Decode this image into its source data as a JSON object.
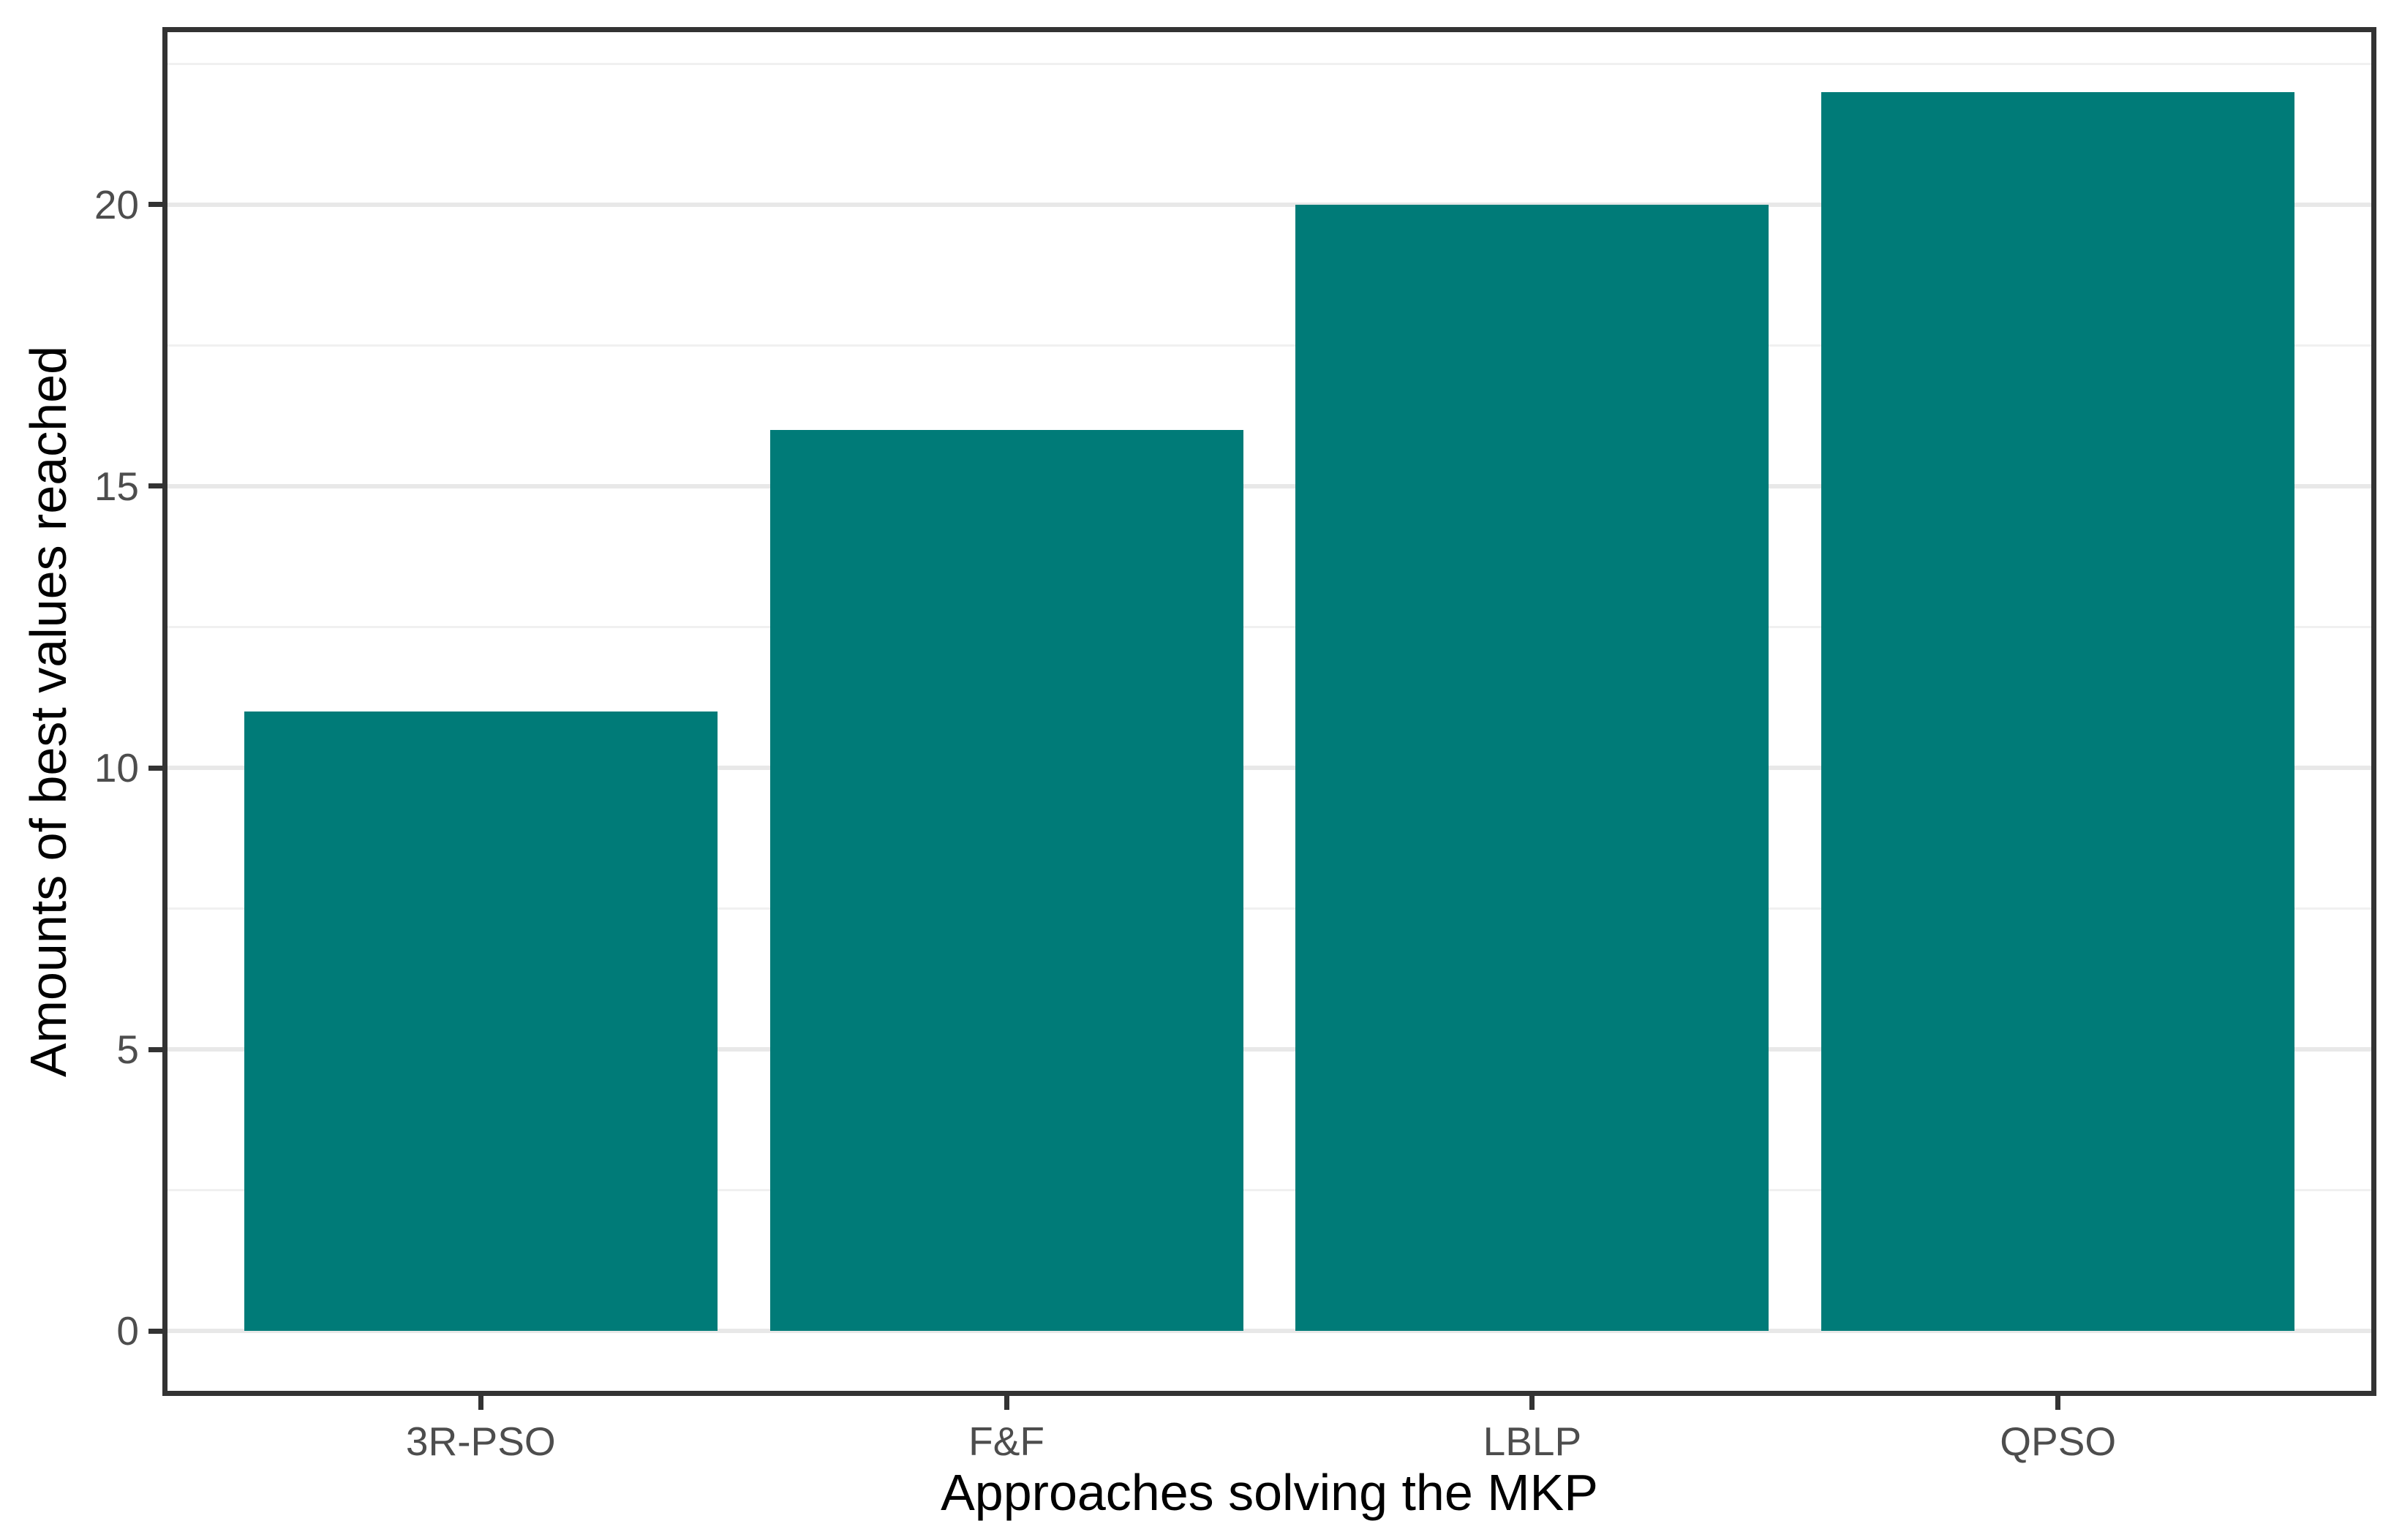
{
  "chart_data": {
    "type": "bar",
    "categories": [
      "3R-PSO",
      "F&F",
      "LBLP",
      "QPSO"
    ],
    "values": [
      11,
      16,
      20,
      22
    ],
    "title": "",
    "xlabel": "Approaches solving the MKP",
    "ylabel": "Amounts of best values reached",
    "ylim": [
      -1.1,
      23.1
    ],
    "yticks_major": [
      0,
      5,
      10,
      15,
      20
    ],
    "ytick_labels": [
      "0",
      "5",
      "10",
      "15",
      "20"
    ],
    "yticks_minor": [
      2.5,
      7.5,
      12.5,
      17.5,
      22.5
    ],
    "x_domain": [
      0.4,
      4.6
    ],
    "bar_width": 0.9,
    "grid": "major+minor horizontal",
    "legend": "none",
    "colors": {
      "bar_fill": "#007B78",
      "panel_border": "#333333",
      "tick_mark": "#333333",
      "tick_label": "#4D4D4D",
      "axis_title": "#000000",
      "grid_major": "#E8E8E8",
      "grid_minor": "#F0F0F0",
      "background": "#FFFFFF"
    }
  }
}
